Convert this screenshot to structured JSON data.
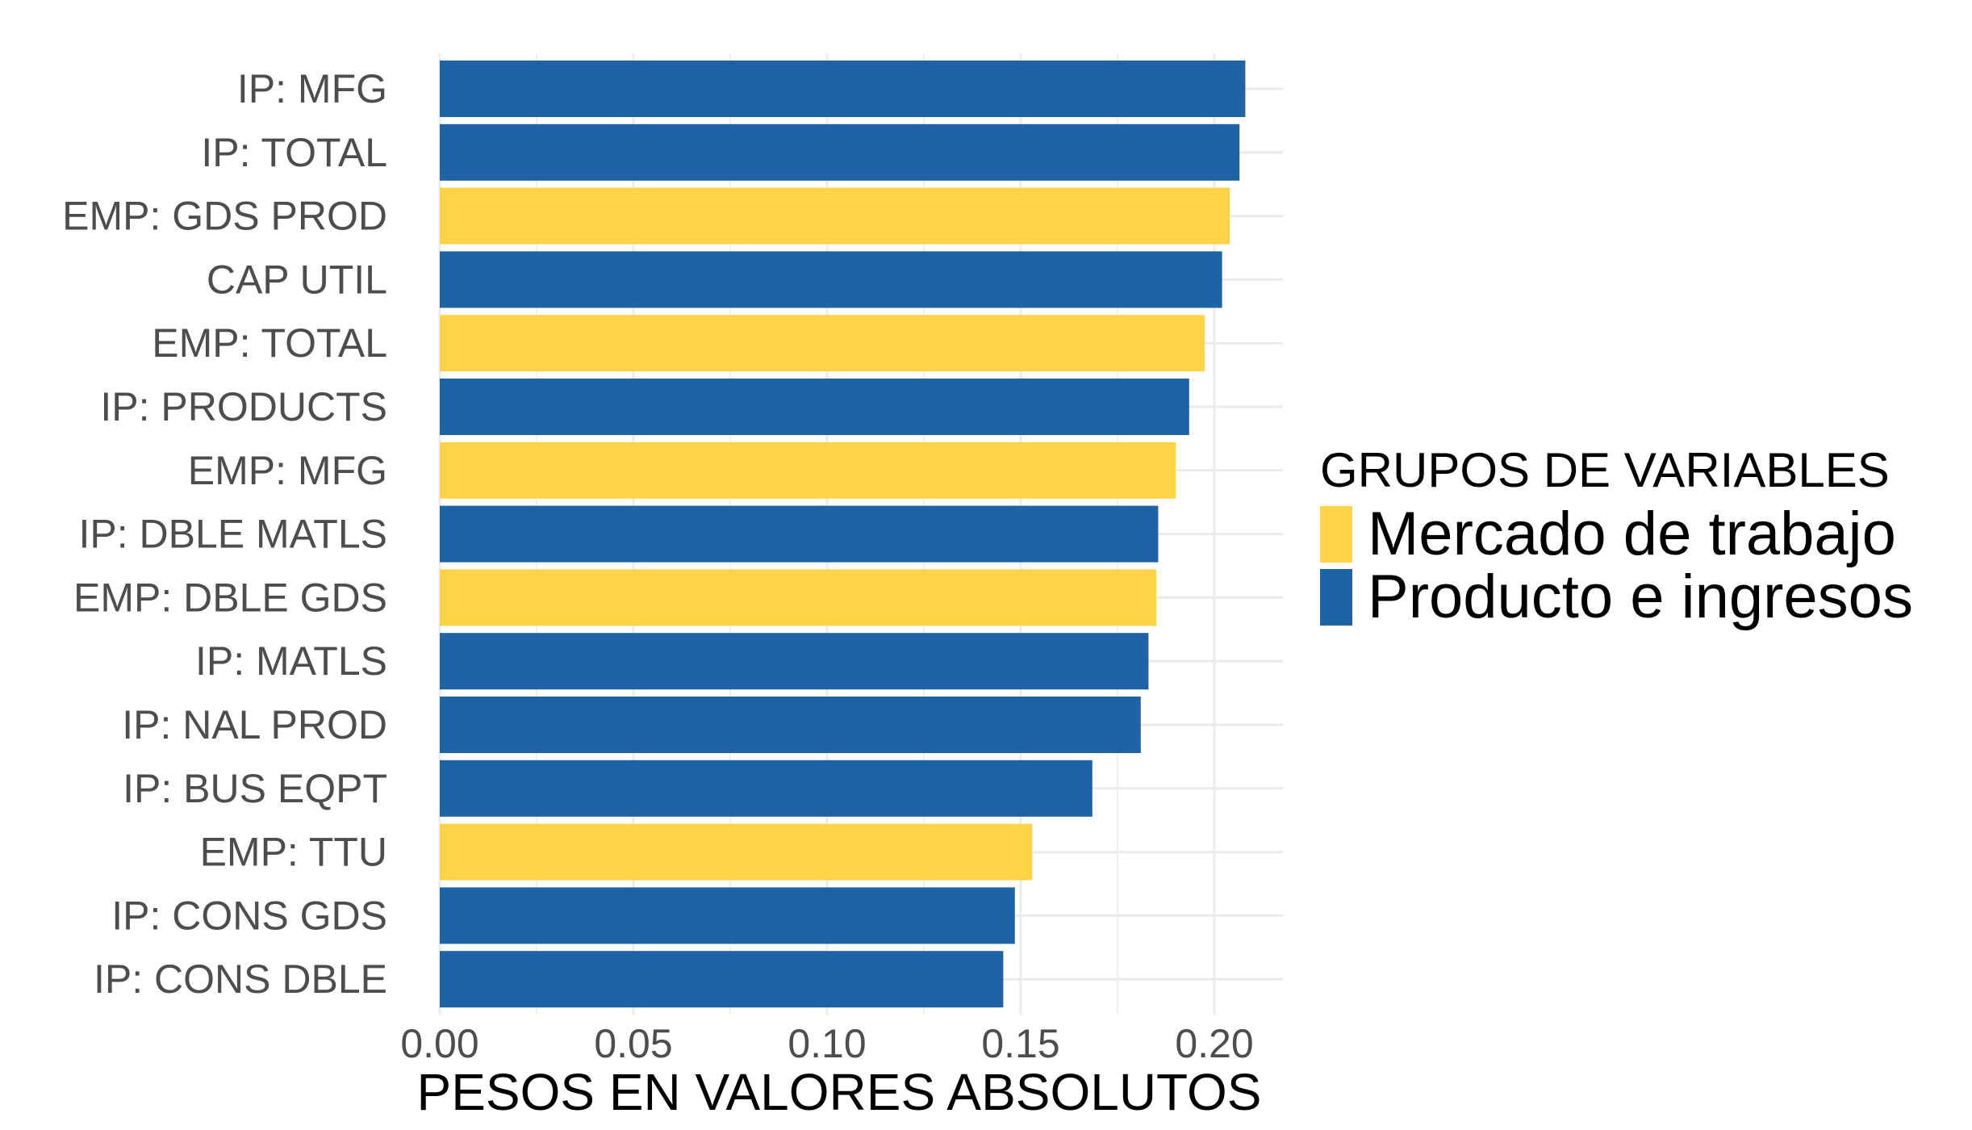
{
  "chart_data": {
    "type": "bar",
    "orientation": "horizontal",
    "xlabel": "PESOS EN VALORES ABSOLUTOS",
    "ylabel": "",
    "xlim": [
      0,
      0.22
    ],
    "xticks": [
      "0.00",
      "0.05",
      "0.10",
      "0.15",
      "0.20"
    ],
    "xtick_values": [
      0.0,
      0.05,
      0.1,
      0.15,
      0.2
    ],
    "grid": true,
    "legend": {
      "title": "GRUPOS DE VARIABLES",
      "placement": "right",
      "entries": [
        {
          "label": "Mercado de trabajo",
          "color": "#FDD447"
        },
        {
          "label": "Producto e ingresos",
          "color": "#1F63A5"
        }
      ]
    },
    "categories": [
      "IP: MFG",
      "IP: TOTAL",
      "EMP: GDS PROD",
      "CAP UTIL",
      "EMP: TOTAL",
      "IP: PRODUCTS",
      "EMP: MFG",
      "IP: DBLE MATLS",
      "EMP: DBLE GDS",
      "IP: MATLS",
      "IP: NAL PROD",
      "IP: BUS EQPT",
      "EMP: TTU",
      "IP: CONS GDS",
      "IP: CONS DBLE"
    ],
    "values": [
      0.208,
      0.2065,
      0.204,
      0.202,
      0.1975,
      0.1935,
      0.19,
      0.1855,
      0.185,
      0.183,
      0.181,
      0.1685,
      0.153,
      0.1485,
      0.1455
    ],
    "groups": [
      "Producto e ingresos",
      "Producto e ingresos",
      "Mercado de trabajo",
      "Producto e ingresos",
      "Mercado de trabajo",
      "Producto e ingresos",
      "Mercado de trabajo",
      "Producto e ingresos",
      "Mercado de trabajo",
      "Producto e ingresos",
      "Producto e ingresos",
      "Producto e ingresos",
      "Mercado de trabajo",
      "Producto e ingresos",
      "Producto e ingresos"
    ]
  }
}
